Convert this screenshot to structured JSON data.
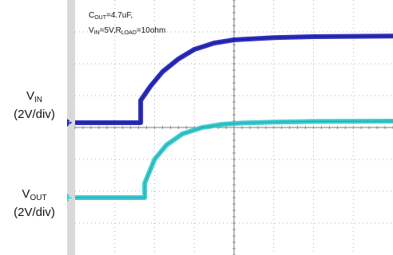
{
  "labels": {
    "vin_main": "V",
    "vin_sub": "IN",
    "vin_scale": "(2V/div)",
    "vout_main": "V",
    "vout_sub": "OUT",
    "vout_scale": "(2V/div)"
  },
  "annotation": {
    "line1_a": "C",
    "line1_sub": "OUT",
    "line1_b": "=4.7uF,",
    "line2_a": "V",
    "line2_sub1": "IN",
    "line2_b": "=5V,R",
    "line2_sub2": "LOAD",
    "line2_c": "=10ohm"
  },
  "colors": {
    "vin_trace": "#1a1ab8",
    "vout_trace": "#27c8cc",
    "grid": "#9a9a9a",
    "marker_ch1": "#1a1ab8",
    "marker_ch2": "#27c8cc"
  },
  "chart_data": {
    "type": "line",
    "grid": true,
    "x_divisions": 8,
    "y_divisions": 8,
    "ylim_divisions": [
      -4,
      4
    ],
    "series": [
      {
        "name": "VIN",
        "channel_marker": "1",
        "x_div": [
          0,
          1.65,
          1.65,
          1.9,
          2.2,
          2.6,
          3.0,
          3.5,
          4.0,
          5.0,
          6.0,
          8.0
        ],
        "y_div": [
          0.15,
          0.15,
          0.85,
          1.3,
          1.75,
          2.15,
          2.45,
          2.65,
          2.75,
          2.82,
          2.85,
          2.87
        ]
      },
      {
        "name": "VOUT",
        "channel_marker": "2",
        "x_div": [
          0,
          1.75,
          1.75,
          2.0,
          2.3,
          2.7,
          3.2,
          3.7,
          4.2,
          5.0,
          6.0,
          8.0
        ],
        "y_div": [
          -2.2,
          -2.2,
          -1.75,
          -1.0,
          -0.55,
          -0.2,
          0.0,
          0.1,
          0.14,
          0.17,
          0.19,
          0.2
        ]
      }
    ]
  }
}
